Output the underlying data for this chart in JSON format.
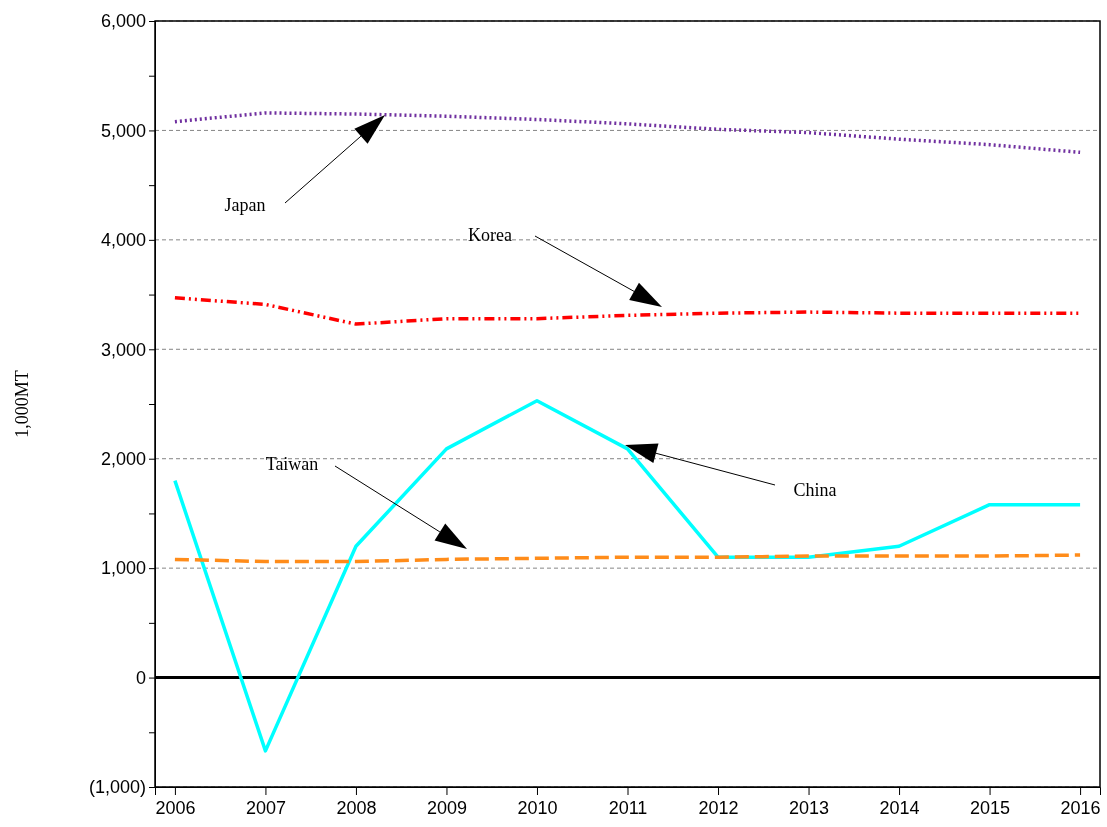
{
  "chart_data": {
    "type": "line",
    "ylabel": "1,000MT",
    "x": [
      2006,
      2007,
      2008,
      2009,
      2010,
      2011,
      2012,
      2013,
      2014,
      2015,
      2016
    ],
    "xlim": [
      2005.78,
      2016.22
    ],
    "xticks": [
      2006,
      2007,
      2008,
      2009,
      2010,
      2011,
      2012,
      2013,
      2014,
      2015,
      2016
    ],
    "ylim": [
      -1000,
      6000
    ],
    "yticks": [
      {
        "value": -1000,
        "label": "(1,000)"
      },
      {
        "value": -500,
        "label": null
      },
      0,
      {
        "value": 500,
        "label": null
      },
      {
        "value": 1000,
        "label": "1,000"
      },
      {
        "value": 1500,
        "label": null
      },
      {
        "value": 2000,
        "label": "2,000"
      },
      {
        "value": 2500,
        "label": null
      },
      {
        "value": 3000,
        "label": "3,000"
      },
      {
        "value": 3500,
        "label": null
      },
      {
        "value": 4000,
        "label": "4,000"
      },
      {
        "value": 4500,
        "label": null
      },
      {
        "value": 5000,
        "label": "5,000"
      },
      {
        "value": 5500,
        "label": null
      },
      {
        "value": 6000,
        "label": "6,000"
      }
    ],
    "grid": "y",
    "marker": "none",
    "ref_lines": [
      {
        "axis": "y",
        "value": 0,
        "color": "#000000",
        "line_style": "solid"
      }
    ],
    "series": [
      {
        "color": "#7030a0",
        "line_style": "dotted",
        "values": [
          5080,
          5160,
          5150,
          5130,
          5100,
          5060,
          5010,
          4980,
          4920,
          4870,
          4800
        ]
      },
      {
        "color": "#ff0000",
        "line_style": "dashdot",
        "values": [
          3470,
          3410,
          3230,
          3280,
          3280,
          3310,
          3330,
          3340,
          3330,
          3330,
          3330
        ]
      },
      {
        "color": "#00ffff",
        "line_style": "solid",
        "values": [
          1800,
          -670,
          1200,
          2090,
          2530,
          2090,
          1100,
          1100,
          1200,
          1580,
          1580
        ]
      },
      {
        "color": "#ff8c1a",
        "line_style": "dashed",
        "values": [
          1080,
          1060,
          1060,
          1080,
          1090,
          1100,
          1100,
          1110,
          1110,
          1110,
          1120
        ]
      }
    ],
    "annotations": [
      "Japan",
      "Korea",
      "Taiwan",
      "China"
    ]
  }
}
